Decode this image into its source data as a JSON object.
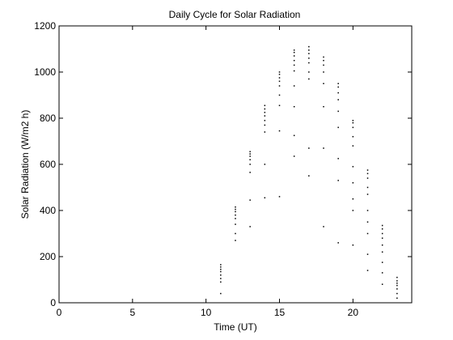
{
  "chart_data": {
    "type": "scatter",
    "title": "Daily Cycle for Solar Radiation",
    "xlabel": "Time (UT)",
    "ylabel": "Solar Radiation (W/m2 h)",
    "xlim": [
      0,
      24
    ],
    "ylim": [
      0,
      1200
    ],
    "xticks": [
      0,
      5,
      10,
      15,
      20
    ],
    "yticks": [
      0,
      200,
      400,
      600,
      800,
      1000,
      1200
    ],
    "grid": false,
    "legend": "none",
    "marker_color": "#000000",
    "series": [
      {
        "points": [
          [
            11,
            40
          ],
          [
            11,
            90
          ],
          [
            11,
            105
          ],
          [
            11,
            120
          ],
          [
            11,
            135
          ],
          [
            11,
            145
          ],
          [
            11,
            155
          ],
          [
            11,
            165
          ],
          [
            12,
            270
          ],
          [
            12,
            300
          ],
          [
            12,
            340
          ],
          [
            12,
            365
          ],
          [
            12,
            380
          ],
          [
            12,
            395
          ],
          [
            12,
            405
          ],
          [
            12,
            415
          ],
          [
            13,
            330
          ],
          [
            13,
            445
          ],
          [
            13,
            565
          ],
          [
            13,
            600
          ],
          [
            13,
            620
          ],
          [
            13,
            635
          ],
          [
            13,
            645
          ],
          [
            13,
            655
          ],
          [
            14,
            455
          ],
          [
            14,
            600
          ],
          [
            14,
            740
          ],
          [
            14,
            770
          ],
          [
            14,
            790
          ],
          [
            14,
            810
          ],
          [
            14,
            825
          ],
          [
            14,
            840
          ],
          [
            14,
            855
          ],
          [
            15,
            460
          ],
          [
            15,
            745
          ],
          [
            15,
            855
          ],
          [
            15,
            900
          ],
          [
            15,
            940
          ],
          [
            15,
            960
          ],
          [
            15,
            975
          ],
          [
            15,
            990
          ],
          [
            15,
            1000
          ],
          [
            16,
            635
          ],
          [
            16,
            725
          ],
          [
            16,
            850
          ],
          [
            16,
            940
          ],
          [
            16,
            1005
          ],
          [
            16,
            1030
          ],
          [
            16,
            1050
          ],
          [
            16,
            1070
          ],
          [
            16,
            1085
          ],
          [
            16,
            1095
          ],
          [
            17,
            550
          ],
          [
            17,
            670
          ],
          [
            17,
            970
          ],
          [
            17,
            1000
          ],
          [
            17,
            1040
          ],
          [
            17,
            1060
          ],
          [
            17,
            1080
          ],
          [
            17,
            1095
          ],
          [
            17,
            1110
          ],
          [
            18,
            330
          ],
          [
            18,
            670
          ],
          [
            18,
            850
          ],
          [
            18,
            950
          ],
          [
            18,
            1000
          ],
          [
            18,
            1030
          ],
          [
            18,
            1050
          ],
          [
            18,
            1065
          ],
          [
            19,
            260
          ],
          [
            19,
            530
          ],
          [
            19,
            625
          ],
          [
            19,
            760
          ],
          [
            19,
            830
          ],
          [
            19,
            880
          ],
          [
            19,
            910
          ],
          [
            19,
            935
          ],
          [
            19,
            950
          ],
          [
            20,
            250
          ],
          [
            20,
            400
          ],
          [
            20,
            450
          ],
          [
            20,
            520
          ],
          [
            20,
            590
          ],
          [
            20,
            680
          ],
          [
            20,
            720
          ],
          [
            20,
            760
          ],
          [
            20,
            780
          ],
          [
            20,
            790
          ],
          [
            21,
            140
          ],
          [
            21,
            210
          ],
          [
            21,
            300
          ],
          [
            21,
            350
          ],
          [
            21,
            400
          ],
          [
            21,
            470
          ],
          [
            21,
            500
          ],
          [
            21,
            540
          ],
          [
            21,
            560
          ],
          [
            21,
            575
          ],
          [
            22,
            80
          ],
          [
            22,
            130
          ],
          [
            22,
            175
          ],
          [
            22,
            220
          ],
          [
            22,
            250
          ],
          [
            22,
            280
          ],
          [
            22,
            300
          ],
          [
            22,
            320
          ],
          [
            22,
            335
          ],
          [
            23,
            20
          ],
          [
            23,
            40
          ],
          [
            23,
            60
          ],
          [
            23,
            75
          ],
          [
            23,
            85
          ],
          [
            23,
            95
          ],
          [
            23,
            110
          ]
        ]
      }
    ]
  }
}
